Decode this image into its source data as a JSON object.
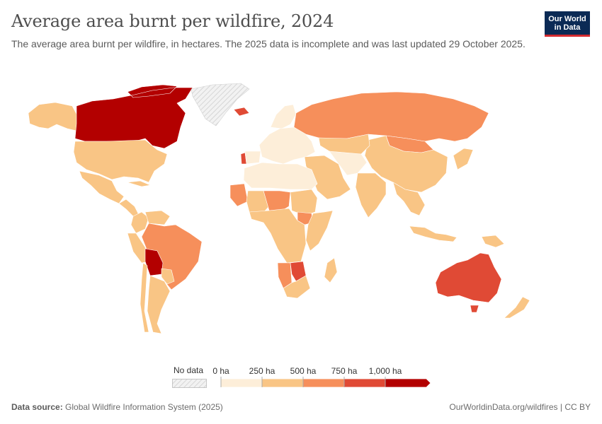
{
  "header": {
    "title": "Average area burnt per wildfire, 2024",
    "subtitle": "The average area burnt per wildfire, in hectares. The 2025 data is incomplete and was last updated 29 October 2025."
  },
  "logo": {
    "line1": "Our World",
    "line2": "in Data"
  },
  "legend": {
    "no_data_label": "No data",
    "ticks": [
      "0 ha",
      "250 ha",
      "500 ha",
      "750 ha",
      "1,000 ha"
    ],
    "colors": [
      "#fdeed9",
      "#f9c585",
      "#f68f5b",
      "#e04a35",
      "#b30000"
    ],
    "no_data_color": "#e8e8e8"
  },
  "footer": {
    "source_label": "Data source:",
    "source_text": "Global Wildfire Information System (2025)",
    "credit": "OurWorldinData.org/wildfires | CC BY"
  },
  "map_data": {
    "type": "choropleth",
    "regions": [
      {
        "name": "Alaska",
        "bin": 1
      },
      {
        "name": "Canada",
        "bin": 4
      },
      {
        "name": "Greenland",
        "bin": -1
      },
      {
        "name": "United States",
        "bin": 1
      },
      {
        "name": "Mexico",
        "bin": 1
      },
      {
        "name": "Central America",
        "bin": 1
      },
      {
        "name": "Cuba",
        "bin": 1
      },
      {
        "name": "Colombia",
        "bin": 1
      },
      {
        "name": "Venezuela",
        "bin": 1
      },
      {
        "name": "Peru",
        "bin": 1
      },
      {
        "name": "Brazil",
        "bin": 2
      },
      {
        "name": "Bolivia",
        "bin": 4
      },
      {
        "name": "Paraguay",
        "bin": 1
      },
      {
        "name": "Argentina",
        "bin": 1
      },
      {
        "name": "Chile",
        "bin": 1
      },
      {
        "name": "Iceland",
        "bin": 3
      },
      {
        "name": "Portugal",
        "bin": 3
      },
      {
        "name": "Spain",
        "bin": 0
      },
      {
        "name": "Europe",
        "bin": 0
      },
      {
        "name": "Scandinavia",
        "bin": 0
      },
      {
        "name": "Russia",
        "bin": 2
      },
      {
        "name": "Mongolia",
        "bin": 2
      },
      {
        "name": "China",
        "bin": 1
      },
      {
        "name": "Kazakhstan",
        "bin": 1
      },
      {
        "name": "Middle East",
        "bin": 1
      },
      {
        "name": "Central Asia",
        "bin": 0
      },
      {
        "name": "India",
        "bin": 1
      },
      {
        "name": "Southeast Asia",
        "bin": 1
      },
      {
        "name": "Indonesia",
        "bin": 1
      },
      {
        "name": "Japan",
        "bin": 1
      },
      {
        "name": "North Africa",
        "bin": 0
      },
      {
        "name": "Mauritania",
        "bin": 2
      },
      {
        "name": "Mali",
        "bin": 1
      },
      {
        "name": "Niger / Chad",
        "bin": 2
      },
      {
        "name": "Sudan",
        "bin": 1
      },
      {
        "name": "South Sudan",
        "bin": 2
      },
      {
        "name": "Central Africa",
        "bin": 1
      },
      {
        "name": "East Africa",
        "bin": 1
      },
      {
        "name": "Namibia",
        "bin": 2
      },
      {
        "name": "Botswana",
        "bin": 3
      },
      {
        "name": "South Africa",
        "bin": 1
      },
      {
        "name": "Madagascar",
        "bin": 1
      },
      {
        "name": "Australia",
        "bin": 3
      },
      {
        "name": "Tasmania",
        "bin": 3
      },
      {
        "name": "New Zealand",
        "bin": 1
      },
      {
        "name": "Papua New Guinea",
        "bin": 1
      }
    ]
  }
}
